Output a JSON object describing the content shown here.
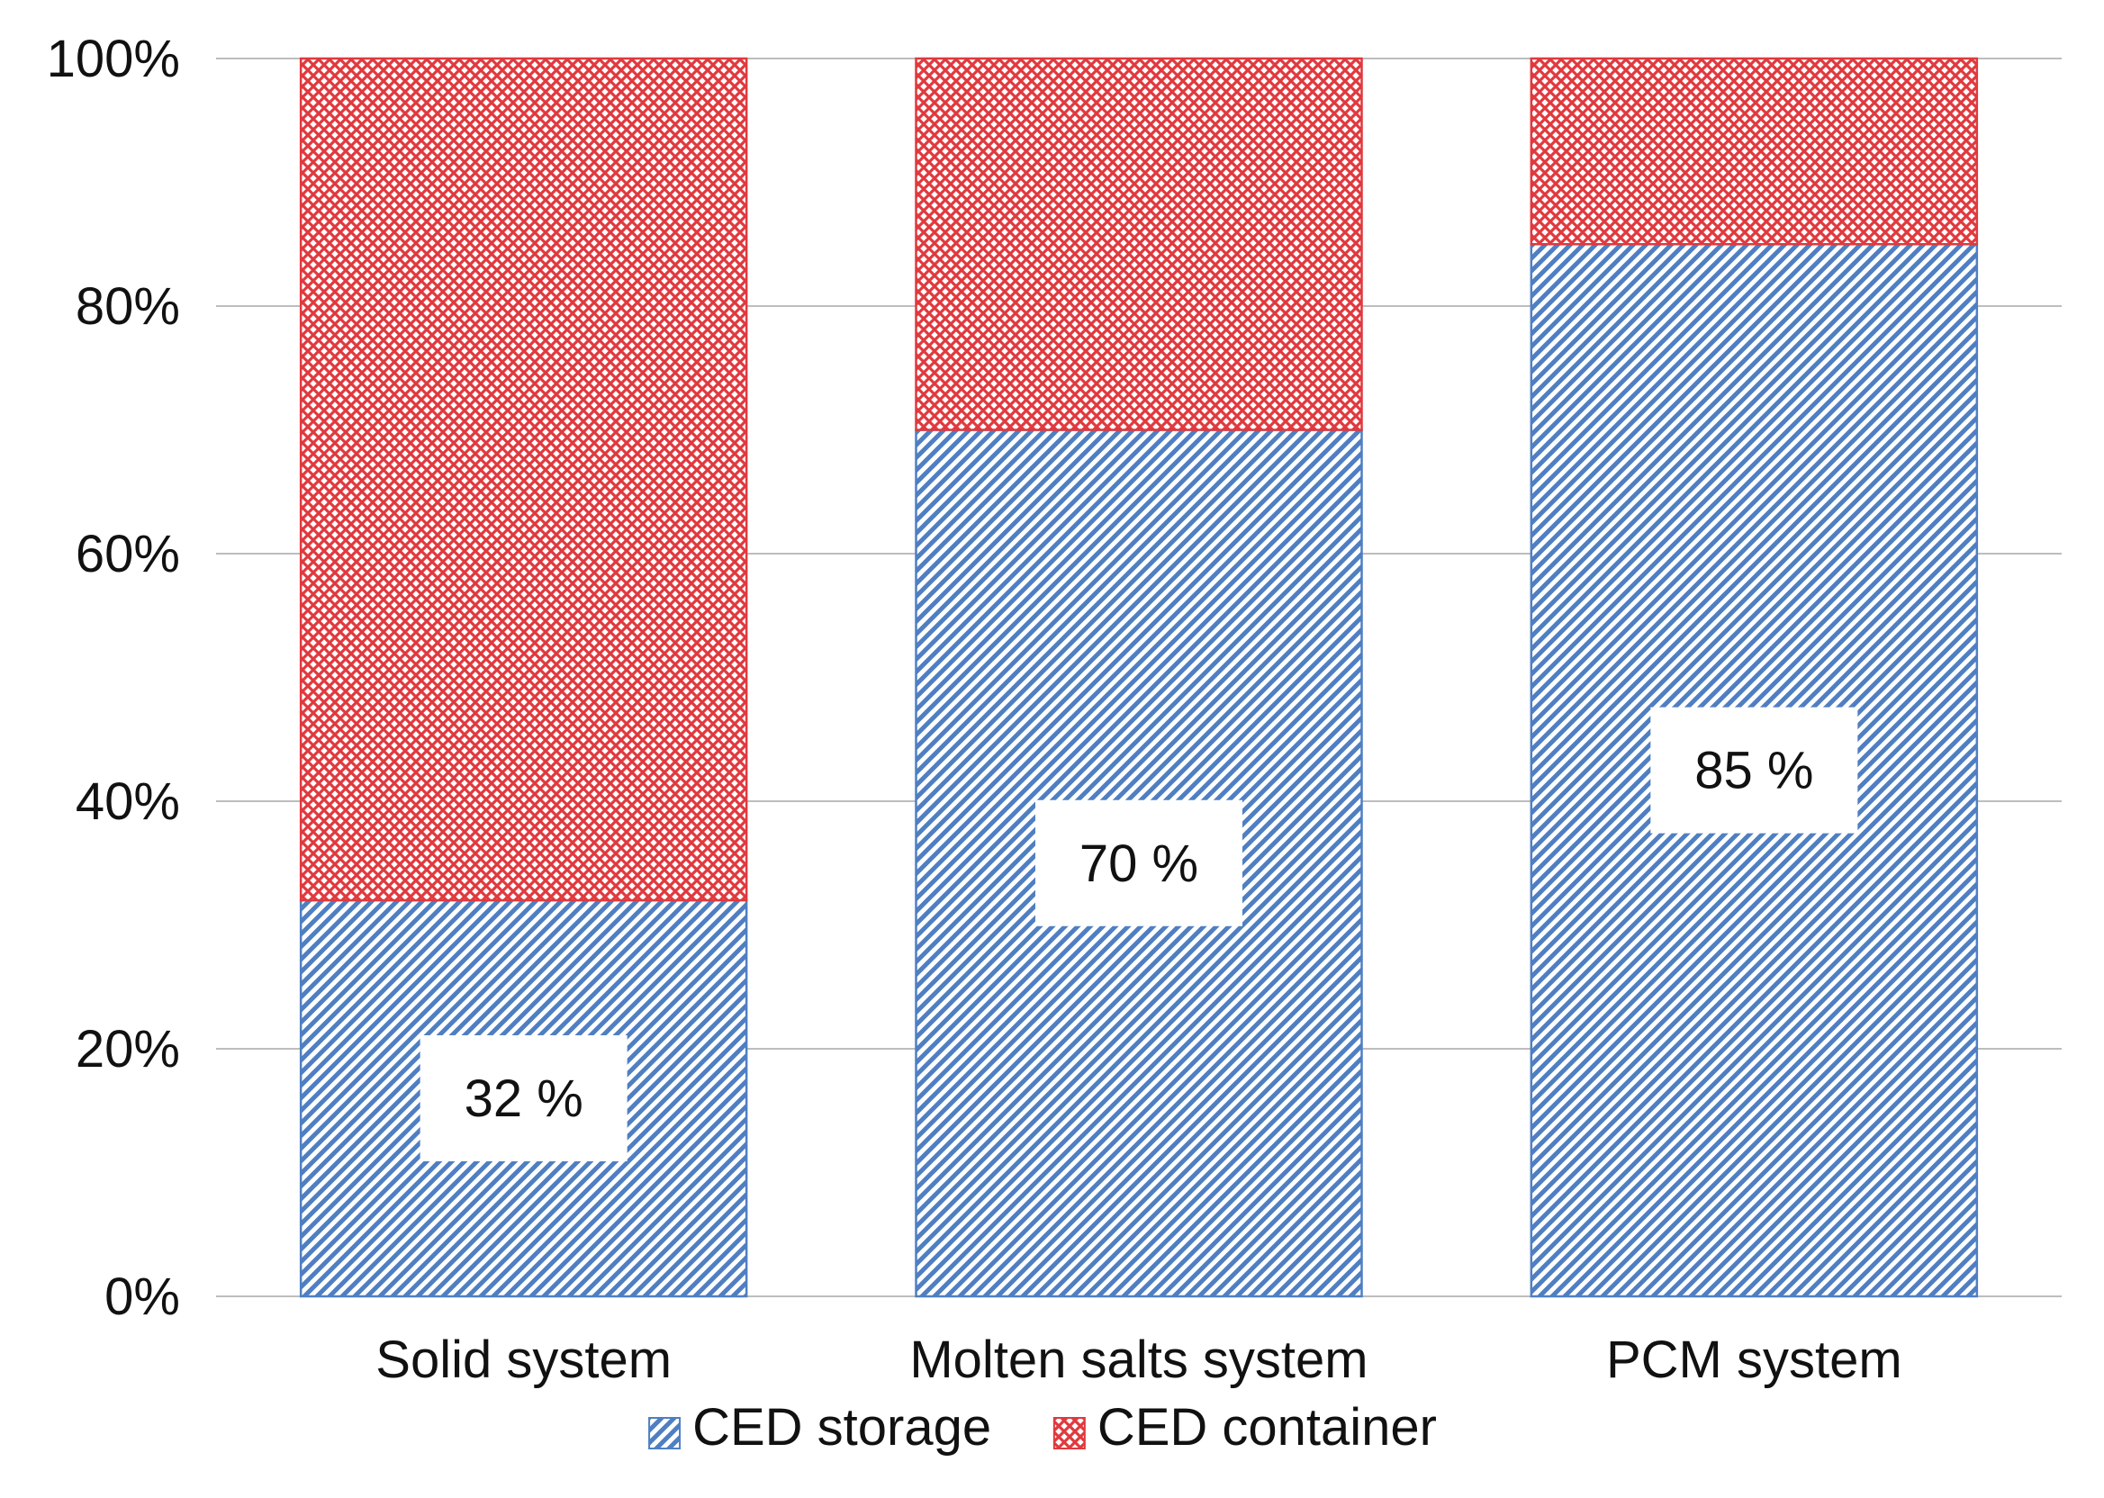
{
  "chart_data": {
    "type": "bar",
    "stacked": true,
    "categories": [
      "Solid system",
      "Molten salts system",
      "PCM system"
    ],
    "series": [
      {
        "name": "CED storage",
        "values": [
          32,
          70,
          85
        ],
        "color": "#4f7fc2",
        "pattern": "diagonal-stripes"
      },
      {
        "name": "CED container",
        "values": [
          68,
          30,
          15
        ],
        "color": "#e0393e",
        "pattern": "crosshatch-dots"
      }
    ],
    "data_labels": [
      "32 %",
      "70 %",
      "85 %"
    ],
    "ylim": [
      0,
      100
    ],
    "yticks": [
      0,
      20,
      40,
      60,
      80,
      100
    ],
    "ytick_labels": [
      "0%",
      "20%",
      "40%",
      "60%",
      "80%",
      "100%"
    ],
    "title": "",
    "xlabel": "",
    "ylabel": "",
    "grid": true,
    "legend_position": "bottom"
  }
}
